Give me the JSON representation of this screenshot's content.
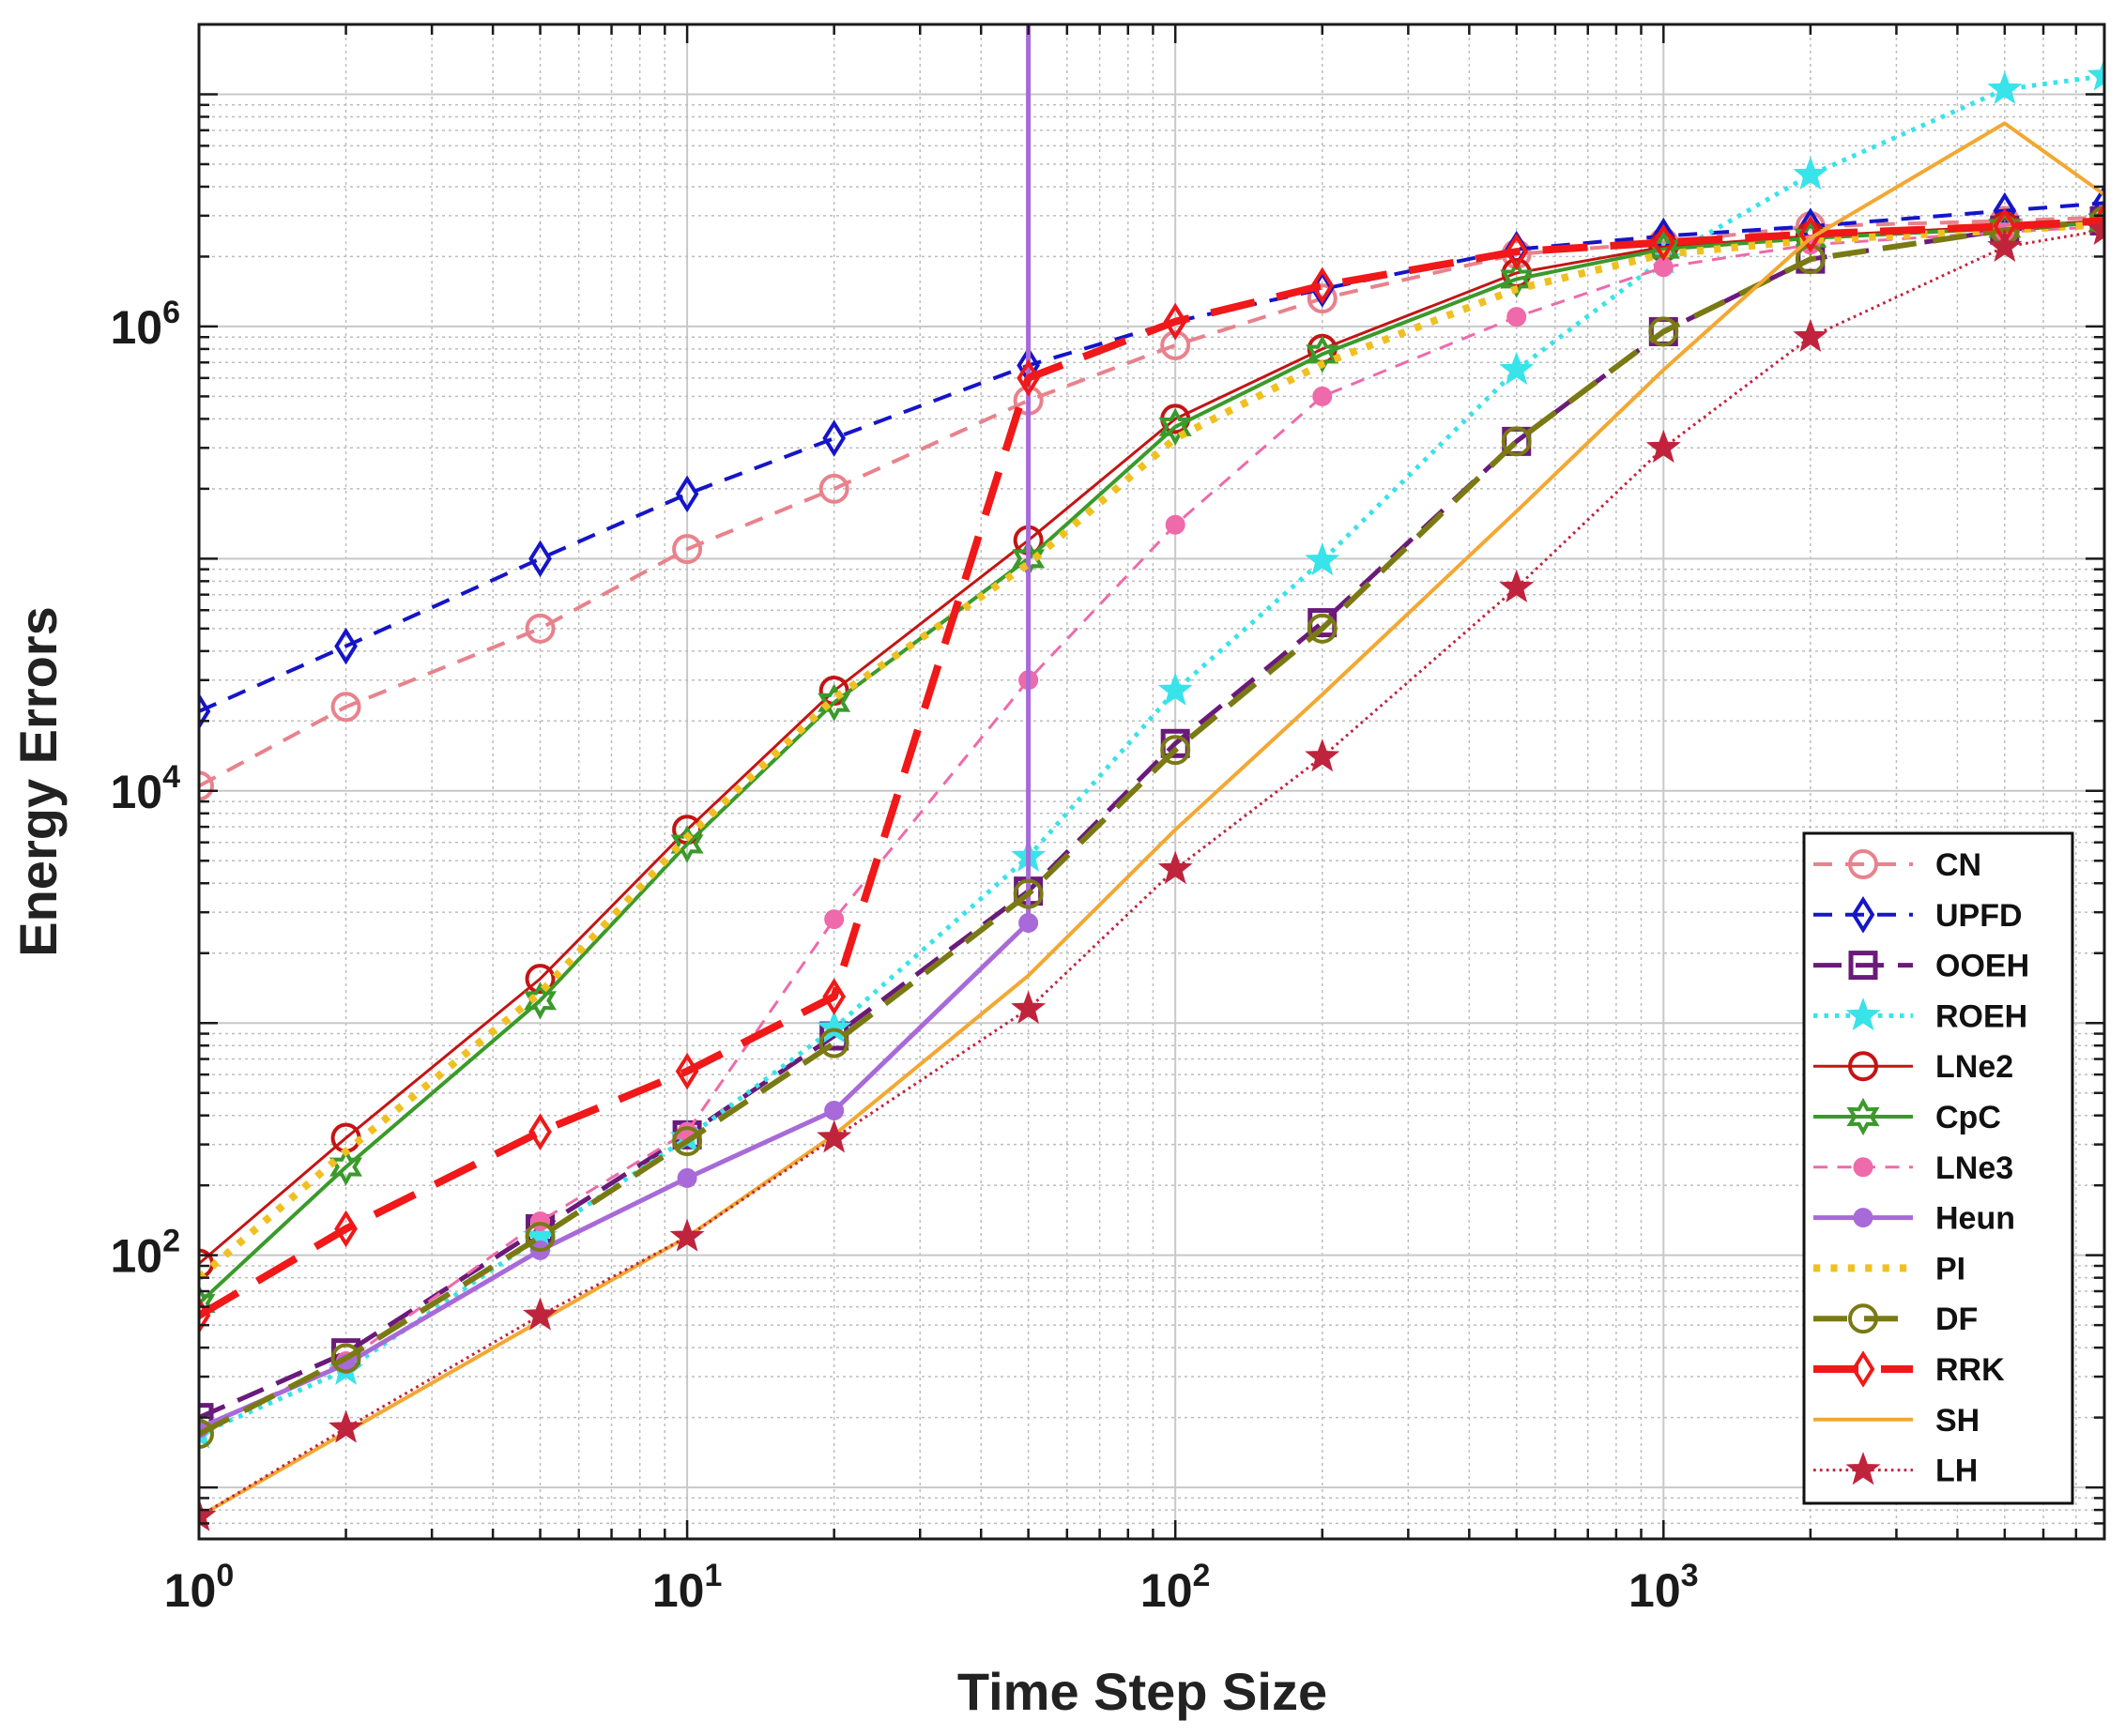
{
  "chart_data": {
    "type": "line",
    "xscale": "log",
    "yscale": "log",
    "xlabel": "Time Step Size",
    "ylabel": "Energy Errors",
    "xlim": [
      1,
      8000
    ],
    "ylim": [
      6,
      20000000
    ],
    "grid": true,
    "legend_position": "bottom-right",
    "x_ticks": [
      {
        "base": "10",
        "exp": "0"
      },
      {
        "base": "10",
        "exp": "1"
      },
      {
        "base": "10",
        "exp": "2"
      },
      {
        "base": "10",
        "exp": "3"
      }
    ],
    "y_ticks": [
      {
        "base": "10",
        "exp": "2"
      },
      {
        "base": "10",
        "exp": "4"
      },
      {
        "base": "10",
        "exp": "6"
      }
    ],
    "series": [
      {
        "name": "CN",
        "color": "#e8828c",
        "dash": "dashed",
        "marker": "circle",
        "width": 4,
        "x": [
          1,
          2,
          5,
          10,
          20,
          50,
          100,
          200,
          500,
          1000,
          2000,
          5000,
          8000
        ],
        "y": [
          10500,
          23000,
          50000,
          110000,
          200000,
          480000,
          830000,
          1320000,
          2050000,
          2300000,
          2700000,
          2850000,
          2950000
        ]
      },
      {
        "name": "UPFD",
        "color": "#1515c8",
        "dash": "dashed",
        "marker": "diamond",
        "width": 4,
        "x": [
          1,
          2,
          5,
          10,
          20,
          50,
          100,
          200,
          500,
          1000,
          2000,
          5000,
          8000
        ],
        "y": [
          22000,
          42000,
          100000,
          190000,
          330000,
          680000,
          1050000,
          1450000,
          2150000,
          2450000,
          2700000,
          3150000,
          3400000
        ]
      },
      {
        "name": "OOEH",
        "color": "#6a1a7a",
        "dash": "longdash",
        "marker": "square",
        "width": 5,
        "x": [
          1,
          2,
          5,
          10,
          20,
          50,
          100,
          200,
          500,
          1000,
          2000,
          5000,
          8000
        ],
        "y": [
          20,
          38,
          130,
          330,
          880,
          3700,
          16000,
          53000,
          320000,
          950000,
          1950000,
          2600000,
          2850000
        ]
      },
      {
        "name": "ROEH",
        "color": "#38e3ea",
        "dash": "dotted",
        "marker": "star",
        "width": 5,
        "x": [
          1,
          2,
          5,
          10,
          20,
          50,
          100,
          200,
          500,
          1000,
          2000,
          5000,
          8000
        ],
        "y": [
          17,
          32,
          120,
          320,
          950,
          5200,
          27000,
          98000,
          650000,
          1950000,
          4500000,
          10500000,
          12000000
        ]
      },
      {
        "name": "LNe2",
        "color": "#c41414",
        "dash": "solid",
        "marker": "circle",
        "width": 3,
        "x": [
          1,
          2,
          5,
          10,
          20,
          50,
          100,
          200,
          500,
          1000,
          2000,
          5000,
          8000
        ],
        "y": [
          92,
          320,
          1550,
          6800,
          27000,
          120000,
          400000,
          800000,
          1700000,
          2200000,
          2450000,
          2700000,
          2850000
        ]
      },
      {
        "name": "CpC",
        "color": "#3a9a2a",
        "dash": "solid",
        "marker": "hexstar",
        "width": 4,
        "x": [
          1,
          2,
          5,
          10,
          20,
          50,
          100,
          200,
          500,
          1000,
          2000,
          5000,
          8000
        ],
        "y": [
          62,
          240,
          1250,
          5900,
          24000,
          100000,
          370000,
          760000,
          1600000,
          2150000,
          2400000,
          2650000,
          2800000
        ]
      },
      {
        "name": "LNe3",
        "color": "#ee6aaa",
        "dash": "dashed",
        "marker": "dot",
        "width": 3,
        "x": [
          1,
          2,
          5,
          10,
          20,
          50,
          100,
          200,
          500,
          1000,
          2000,
          5000,
          8000
        ],
        "y": [
          18,
          35,
          140,
          340,
          2800,
          30000,
          140000,
          500000,
          1100000,
          1800000,
          2250000,
          2550000,
          2700000
        ]
      },
      {
        "name": "Heun",
        "color": "#a86ad8",
        "dash": "solid",
        "marker": "dot",
        "width": 5,
        "x": [
          1,
          2,
          5,
          10,
          20,
          50,
          50
        ],
        "y": [
          18,
          34,
          105,
          215,
          420,
          2700,
          20000000
        ]
      },
      {
        "name": "PI",
        "color": "#f0c020",
        "dash": "dotted",
        "marker": "none",
        "width": 8,
        "x": [
          1,
          2,
          5,
          10,
          20,
          50,
          100,
          200,
          500,
          1000,
          2000,
          5000,
          8000
        ],
        "y": [
          80,
          280,
          1350,
          6300,
          25000,
          95000,
          330000,
          690000,
          1450000,
          2050000,
          2350000,
          2600000,
          2750000
        ]
      },
      {
        "name": "DF",
        "color": "#7a7a14",
        "dash": "longdash",
        "marker": "circle",
        "width": 6,
        "x": [
          1,
          2,
          5,
          10,
          20,
          50,
          100,
          200,
          500,
          1000,
          2000,
          5000,
          8000
        ],
        "y": [
          17,
          36,
          120,
          310,
          820,
          3600,
          15000,
          50000,
          320000,
          950000,
          1950000,
          2600000,
          2850000
        ]
      },
      {
        "name": "RRK",
        "color": "#f01818",
        "dash": "longdash",
        "marker": "diamond",
        "width": 8,
        "x": [
          1,
          2,
          5,
          10,
          20,
          50,
          100,
          200,
          500,
          1000,
          2000,
          5000,
          8000
        ],
        "y": [
          55,
          130,
          340,
          620,
          1300,
          600000,
          1050000,
          1500000,
          2100000,
          2300000,
          2500000,
          2700000,
          2850000
        ]
      },
      {
        "name": "SH",
        "color": "#f2a832",
        "dash": "solid",
        "marker": "none",
        "width": 4,
        "x": [
          1,
          10,
          20,
          50,
          100,
          200,
          500,
          1000,
          2000,
          5000,
          8000
        ],
        "y": [
          7.5,
          120,
          330,
          1600,
          6800,
          26000,
          160000,
          650000,
          2400000,
          7500000,
          3700000
        ]
      },
      {
        "name": "LH",
        "color": "#c0243c",
        "dash": "dotted",
        "marker": "star",
        "width": 3,
        "x": [
          1,
          2,
          5,
          10,
          20,
          50,
          100,
          200,
          500,
          1000,
          2000,
          5000,
          8000
        ],
        "y": [
          7.5,
          18,
          55,
          120,
          320,
          1150,
          4600,
          14000,
          75000,
          300000,
          900000,
          2200000,
          2600000
        ]
      }
    ]
  }
}
